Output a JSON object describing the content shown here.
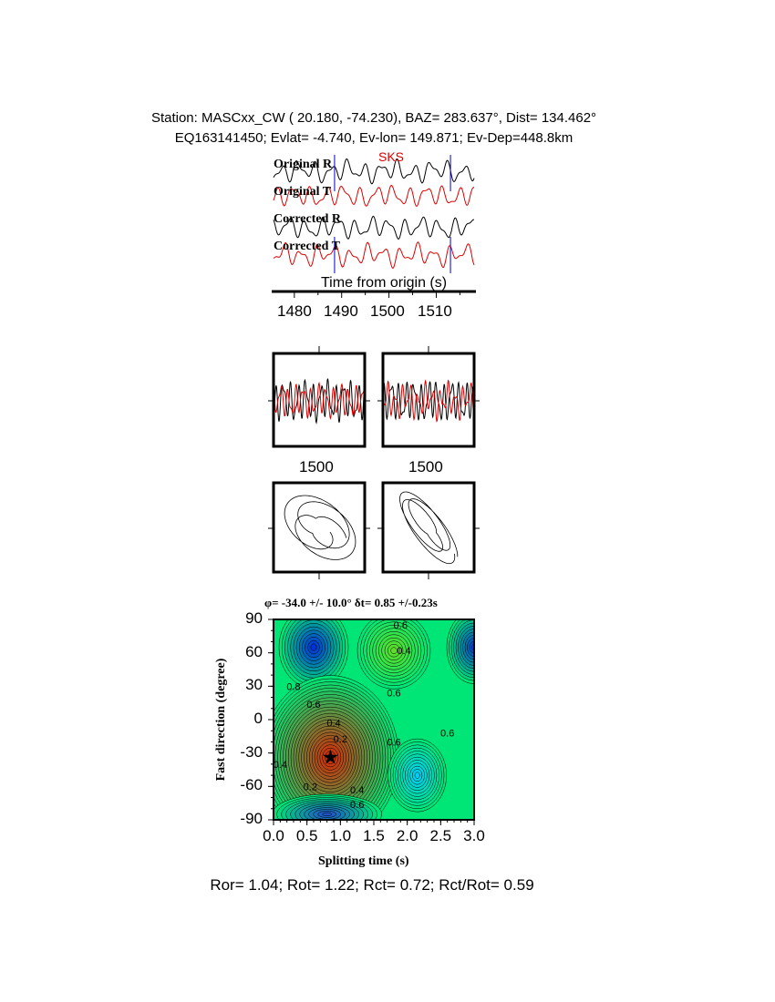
{
  "header": {
    "line1": "Station: MASCxx_CW (  20.180,  -74.230), BAZ=  283.637°, Dist=  134.462°",
    "line2": "EQ163141450; Evlat=  -4.740, Ev-lon= 149.871; Ev-Dep=448.8km"
  },
  "traces": {
    "labels": [
      "Original R",
      "Original T",
      "Corrected R",
      "Corrected T"
    ],
    "phase": "SKS",
    "xlabel": "Time from origin (s)",
    "xticks": [
      "1480",
      "1490",
      "1500",
      "1510"
    ],
    "xrange": [
      1475.6,
      1518
    ],
    "window_markers": [
      1488.5,
      1513
    ],
    "colors": {
      "radial": "#000000",
      "transverse": "#dd0000",
      "marker": "#0000cc"
    }
  },
  "waveform_panels": {
    "xtick": "1500"
  },
  "chart_data": {
    "type": "heatmap",
    "title": "φ= -34.0 +/- 10.0° δt= 0.85 +/-0.23s",
    "xlabel": "Splitting time (s)",
    "ylabel": "Fast direction (degree)",
    "xlim": [
      0,
      3
    ],
    "ylim": [
      -90,
      90
    ],
    "xticks": [
      "0.0",
      "0.5",
      "1.0",
      "1.5",
      "2.0",
      "2.5",
      "3.0"
    ],
    "yticks": [
      "90",
      "60",
      "30",
      "0",
      "-30",
      "-60",
      "-90"
    ],
    "best_fit": {
      "dt": 0.85,
      "phi": -34.0
    },
    "contour_labels": [
      {
        "text": "0.6",
        "x": 1.9,
        "y": 85
      },
      {
        "text": "0.4",
        "x": 1.95,
        "y": 62
      },
      {
        "text": "0.8",
        "x": 0.3,
        "y": 30
      },
      {
        "text": "0.6",
        "x": 0.6,
        "y": 14
      },
      {
        "text": "0.6",
        "x": 1.8,
        "y": 24
      },
      {
        "text": "0.4",
        "x": 0.9,
        "y": -3
      },
      {
        "text": "0.2",
        "x": 1.0,
        "y": -17
      },
      {
        "text": "0.6",
        "x": 1.8,
        "y": -20
      },
      {
        "text": "0.6",
        "x": 2.6,
        "y": -12
      },
      {
        "text": "0.4",
        "x": 0.1,
        "y": -40
      },
      {
        "text": "0.2",
        "x": 0.55,
        "y": -60
      },
      {
        "text": "0.4",
        "x": 1.25,
        "y": -63
      },
      {
        "text": "0.6",
        "x": 1.25,
        "y": -76
      }
    ],
    "extrema": [
      {
        "x": 0.6,
        "y": 65,
        "level": "max",
        "color": "#0022dd"
      },
      {
        "x": 1.8,
        "y": 62,
        "level": "low",
        "color": "#66dd22"
      },
      {
        "x": 0.85,
        "y": -34,
        "level": "min",
        "color": "#dd2200"
      },
      {
        "x": 2.15,
        "y": -50,
        "level": "high",
        "color": "#00ccff"
      },
      {
        "x": 3.0,
        "y": 65,
        "level": "max",
        "color": "#0033cc"
      },
      {
        "x": 0.8,
        "y": -85,
        "level": "high",
        "color": "#2244cc"
      }
    ]
  },
  "footer": {
    "ratios": "Ror= 1.04; Rot= 1.22; Rct= 0.72; Rct/Rot= 0.59"
  }
}
